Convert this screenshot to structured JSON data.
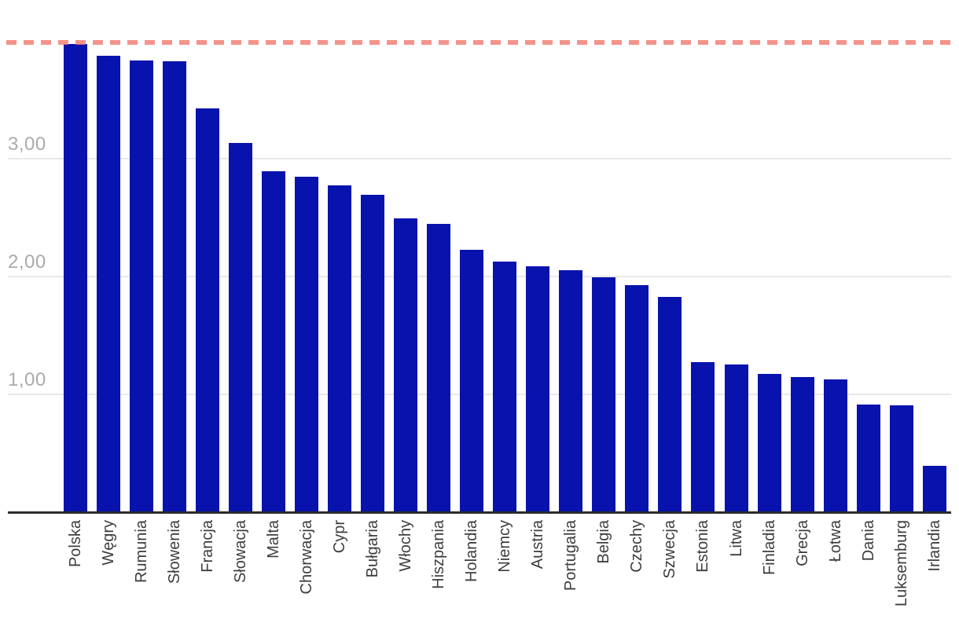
{
  "chart_data": {
    "type": "bar",
    "title": "",
    "xlabel": "",
    "ylabel": "",
    "categories": [
      "Polska",
      "Węgry",
      "Rumunia",
      "Słowenia",
      "Francja",
      "Słowacja",
      "Malta",
      "Chorwacja",
      "Cypr",
      "Bułgaria",
      "Włochy",
      "Hiszpania",
      "Holandia",
      "Niemcy",
      "Austria",
      "Portugalia",
      "Belgia",
      "Czechy",
      "Szwecja",
      "Estonia",
      "Litwa",
      "Finladia",
      "Grecja",
      "Łotwa",
      "Dania",
      "Luksemburg",
      "Irlandia"
    ],
    "values": [
      3.97,
      3.87,
      3.83,
      3.82,
      3.42,
      3.13,
      2.89,
      2.84,
      2.77,
      2.69,
      2.49,
      2.44,
      2.22,
      2.12,
      2.08,
      2.05,
      1.99,
      1.92,
      1.82,
      1.27,
      1.25,
      1.17,
      1.14,
      1.12,
      0.91,
      0.9,
      0.39
    ],
    "y_ticks": [
      {
        "value": 1,
        "label": "1,00"
      },
      {
        "value": 2,
        "label": "2,00"
      },
      {
        "value": 3,
        "label": "3,00"
      }
    ],
    "ylim": [
      0,
      4.0
    ],
    "reference_line": {
      "value": 3.98,
      "style": "dashed"
    },
    "grid": "horizontal-only",
    "legend": "none",
    "colors": {
      "bar": "#0812ad",
      "reference_line": "rgba(240,125,114,0.82)",
      "gridline": "#e9e9e9",
      "axis_line": "#2b2b2b",
      "ytick_text": "#ababab",
      "xtick_text": "#3d3d3d",
      "background": "#ffffff"
    }
  }
}
